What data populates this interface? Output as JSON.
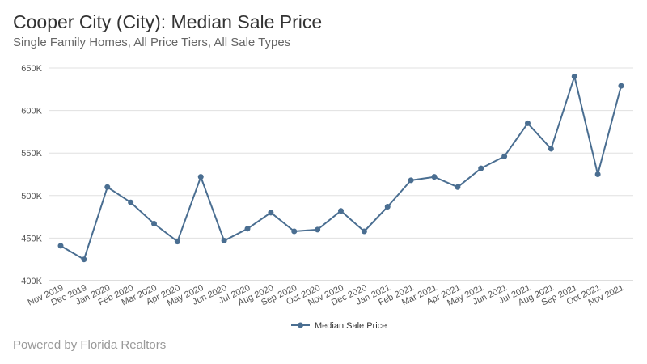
{
  "title": "Cooper City (City): Median Sale Price",
  "subtitle": "Single Family Homes, All Price Tiers, All Sale Types",
  "footer": "Powered by Florida Realtors",
  "chart_data": {
    "type": "line",
    "title": "Cooper City (City): Median Sale Price",
    "subtitle": "Single Family Homes, All Price Tiers, All Sale Types",
    "xlabel": "",
    "ylabel": "",
    "categories": [
      "Nov 2019",
      "Dec 2019",
      "Jan 2020",
      "Feb 2020",
      "Mar 2020",
      "Apr 2020",
      "May 2020",
      "Jun 2020",
      "Jul 2020",
      "Aug 2020",
      "Sep 2020",
      "Oct 2020",
      "Nov 2020",
      "Dec 2020",
      "Jan 2021",
      "Feb 2021",
      "Mar 2021",
      "Apr 2021",
      "May 2021",
      "Jun 2021",
      "Jul 2021",
      "Aug 2021",
      "Sep 2021",
      "Oct 2021",
      "Nov 2021"
    ],
    "series": [
      {
        "name": "Median Sale Price",
        "values": [
          441000,
          425000,
          510000,
          492000,
          467000,
          446000,
          522000,
          447000,
          461000,
          480000,
          458000,
          460000,
          482000,
          458000,
          487000,
          518000,
          522000,
          510000,
          532000,
          546000,
          585000,
          555000,
          640000,
          525000,
          629000
        ],
        "color": "#4a6e91"
      }
    ],
    "ylim": [
      400000,
      650000
    ],
    "yticks": [
      400000,
      450000,
      500000,
      550000,
      600000,
      650000
    ],
    "ytick_labels": [
      "400K",
      "450K",
      "500K",
      "550K",
      "600K",
      "650K"
    ],
    "grid": true,
    "legend": "bottom-center"
  }
}
